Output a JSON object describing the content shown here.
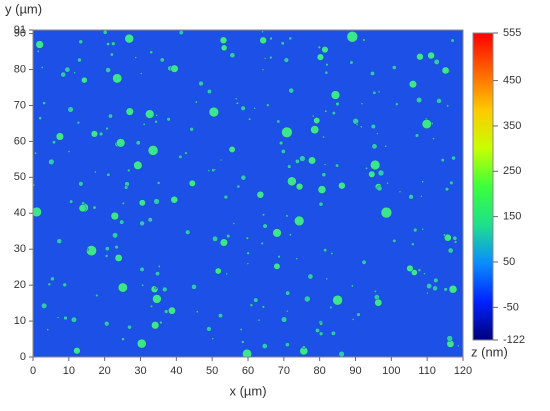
{
  "chart_data": {
    "type": "heatmap",
    "xlabel": "x (µm)",
    "ylabel": "y (µm)",
    "colorbar_label": "z (nm)",
    "xlim": [
      0,
      120
    ],
    "xticks": [
      0,
      10,
      20,
      30,
      40,
      50,
      60,
      70,
      80,
      90,
      100,
      110,
      120
    ],
    "ylim": [
      0,
      91
    ],
    "yticks": [
      0,
      10,
      20,
      30,
      40,
      50,
      60,
      70,
      80,
      90,
      91
    ],
    "clim": [
      -122,
      555
    ],
    "cticks": [
      -122,
      -50,
      50,
      150,
      250,
      350,
      450,
      555
    ],
    "colormap": [
      "#00007a",
      "#0022ff",
      "#0a8cff",
      "#1ee08c",
      "#3cff3c",
      "#c8ff00",
      "#ffc800",
      "#ff6400",
      "#ff0000"
    ]
  }
}
